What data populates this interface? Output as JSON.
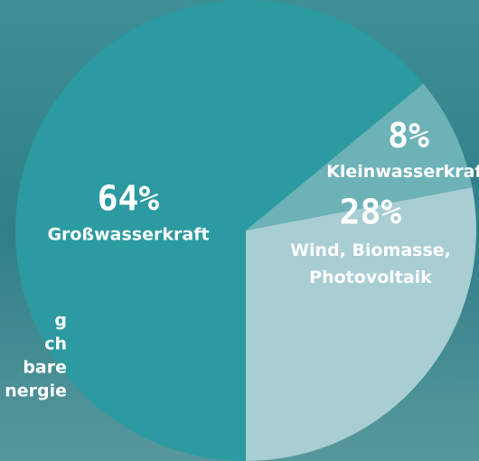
{
  "chart_data": {
    "type": "pie",
    "categories": [
      "Großwasserkraft",
      "Kleinwasserkraft",
      "Wind, Biomasse, Photovoltaik"
    ],
    "values": [
      64,
      8,
      28
    ],
    "value_labels": [
      "64%",
      "8%",
      "28%"
    ],
    "colors": [
      "#2b9aa1",
      "#6cb2b7",
      "#a8cdd3"
    ],
    "side_text": [
      "g",
      "ch",
      "bare",
      "nergie"
    ]
  }
}
